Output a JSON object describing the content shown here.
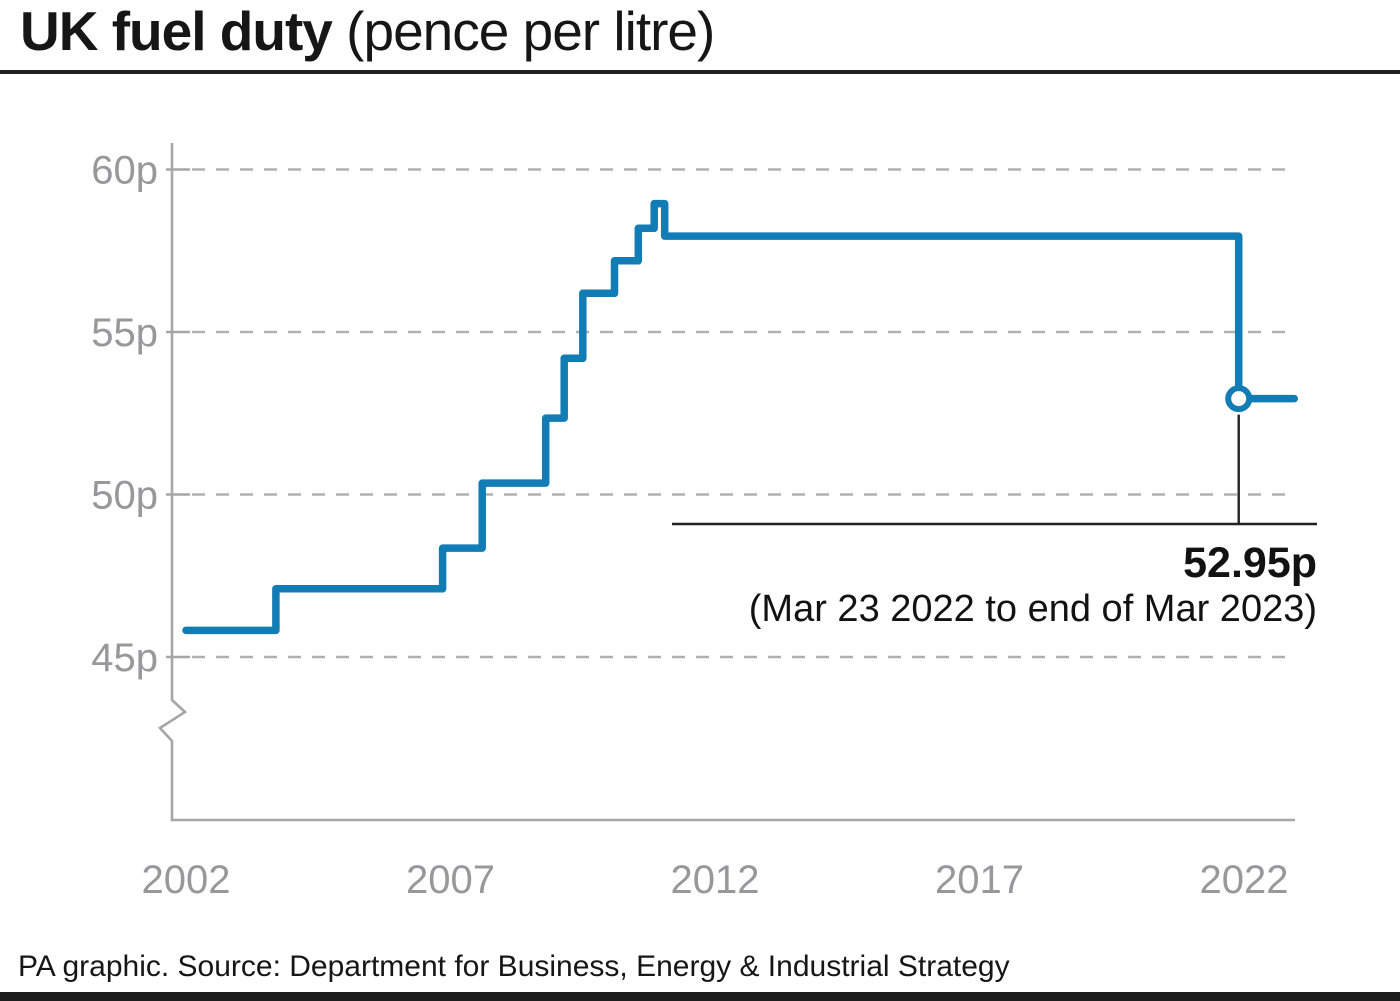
{
  "title": {
    "main": "UK fuel duty",
    "unit": " (pence per litre)"
  },
  "footer": {
    "text": "PA graphic. Source: Department for Business, Energy & Industrial Strategy"
  },
  "colors": {
    "line": "#127cb4",
    "axis": "#a6a6a6",
    "grid": "#b1b1b1",
    "tick_label": "#98989b",
    "annotation": "#121212",
    "title_rule": "#222222",
    "footer_bar": "#1d1d1d"
  },
  "chart_data": {
    "type": "line",
    "line_style": "step-after",
    "title": "UK fuel duty (pence per litre)",
    "xlabel": "",
    "ylabel": "pence per litre",
    "legend": "none",
    "grid": "dashed-horizontal",
    "axis_break_bottom_left": true,
    "x_ticks": [
      2002,
      2007,
      2012,
      2017,
      2022
    ],
    "y_ticks": [
      "45p",
      "50p",
      "55p",
      "60p"
    ],
    "y_tick_values": [
      45,
      50,
      55,
      60
    ],
    "ylim_shown": [
      45,
      60
    ],
    "x_end": 2022.95,
    "steps": [
      {
        "x": 2002.0,
        "value": 45.82
      },
      {
        "x": 2003.7,
        "value": 47.1
      },
      {
        "x": 2006.85,
        "value": 48.35
      },
      {
        "x": 2007.6,
        "value": 50.35
      },
      {
        "x": 2008.8,
        "value": 52.35
      },
      {
        "x": 2009.15,
        "value": 54.19
      },
      {
        "x": 2009.5,
        "value": 56.19
      },
      {
        "x": 2010.1,
        "value": 57.19
      },
      {
        "x": 2010.55,
        "value": 58.19
      },
      {
        "x": 2010.85,
        "value": 58.95
      },
      {
        "x": 2011.05,
        "value": 57.95
      },
      {
        "x": 2021.9,
        "value": 52.95
      }
    ],
    "marker": {
      "x": 2021.9,
      "value": 52.95,
      "style": "open-circle"
    },
    "annotation": {
      "value_label": "52.95p",
      "note": "(Mar 23 2022 to end of Mar 2023)"
    }
  }
}
